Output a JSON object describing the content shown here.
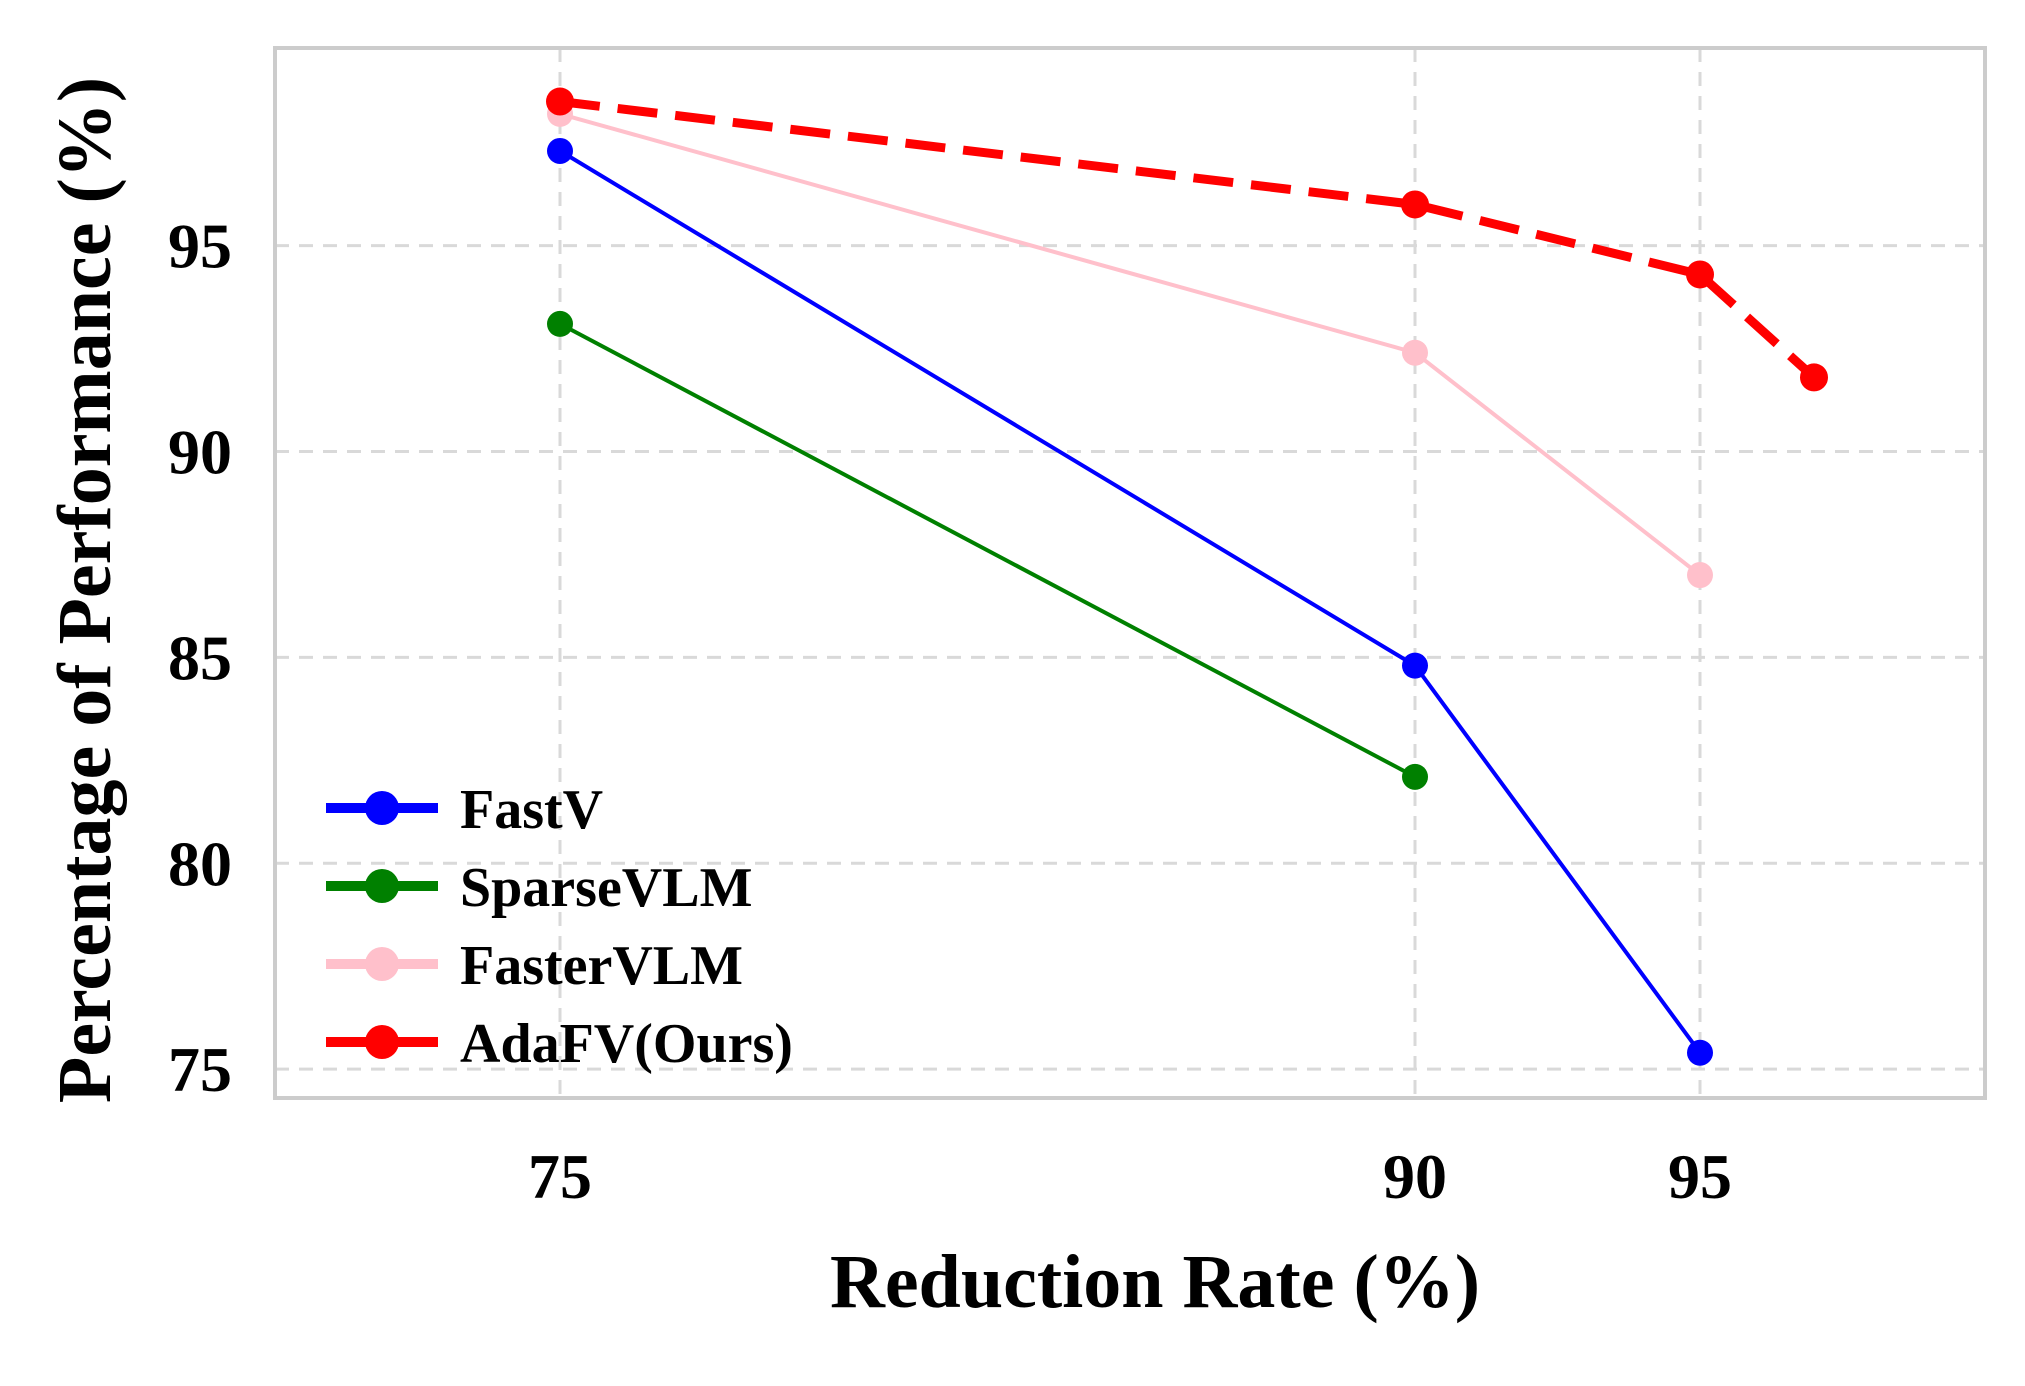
{
  "chart_data": {
    "type": "line",
    "title": "",
    "xlabel": "Reduction Rate (%)",
    "ylabel": "Percentage of Performance (%)",
    "xlim": [
      70,
      100
    ],
    "ylim": [
      74.3,
      99.8
    ],
    "xticks": [
      75,
      90,
      95
    ],
    "yticks": [
      75,
      80,
      85,
      90,
      95
    ],
    "grid": true,
    "legend_position": "lower-left",
    "series": [
      {
        "name": "FastV",
        "color": "#0000ff",
        "dashed": false,
        "x": [
          75,
          90,
          95
        ],
        "y": [
          97.3,
          84.8,
          75.4
        ]
      },
      {
        "name": "SparseVLM",
        "color": "#008000",
        "dashed": false,
        "x": [
          75,
          90
        ],
        "y": [
          93.1,
          82.1
        ]
      },
      {
        "name": "FasterVLM",
        "color": "#ffc0cb",
        "dashed": false,
        "x": [
          75,
          90,
          95
        ],
        "y": [
          98.2,
          92.4,
          87.0
        ]
      },
      {
        "name": "AdaFV(Ours)",
        "color": "#ff0000",
        "dashed": true,
        "x": [
          75,
          90,
          95,
          97
        ],
        "y": [
          98.5,
          96.0,
          94.3,
          91.8
        ]
      }
    ]
  }
}
